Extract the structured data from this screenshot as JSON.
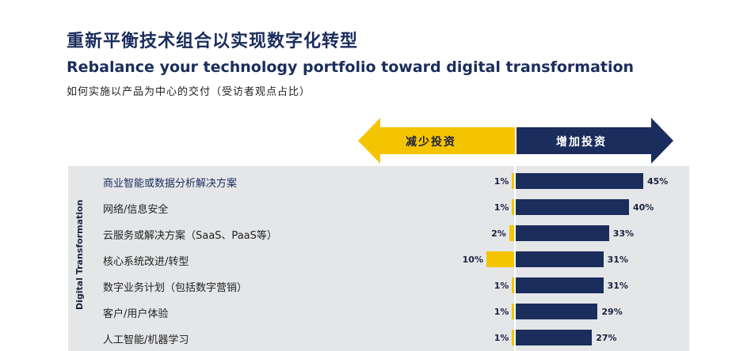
{
  "title_cn": "重新平衡技术组合以实现数字化转型",
  "title_en": "Rebalance your technology portfolio toward digital transformation",
  "subtitle": "如何实施以产品为中心的交付（受访者观点占比）",
  "side_label": "Digital Transformation",
  "colors": {
    "decrease": "#f5c400",
    "increase": "#1b2d5c",
    "panel": "#e4e6e8"
  },
  "chart_data": {
    "type": "bar",
    "orientation": "horizontal-diverging",
    "series": [
      {
        "name": "减少投资",
        "values": [
          1,
          1,
          2,
          10,
          1,
          1,
          1
        ]
      },
      {
        "name": "增加投资",
        "values": [
          45,
          40,
          33,
          31,
          31,
          29,
          27
        ]
      }
    ],
    "categories": [
      "商业智能或数据分析解决方案",
      "网络/信息安全",
      "云服务或解决方案（SaaS、PaaS等）",
      "核心系统改进/转型",
      "数字业务计划（包括数字营销）",
      "客户/用户体验",
      "人工智能/机器学习"
    ],
    "value_suffix": "%"
  }
}
